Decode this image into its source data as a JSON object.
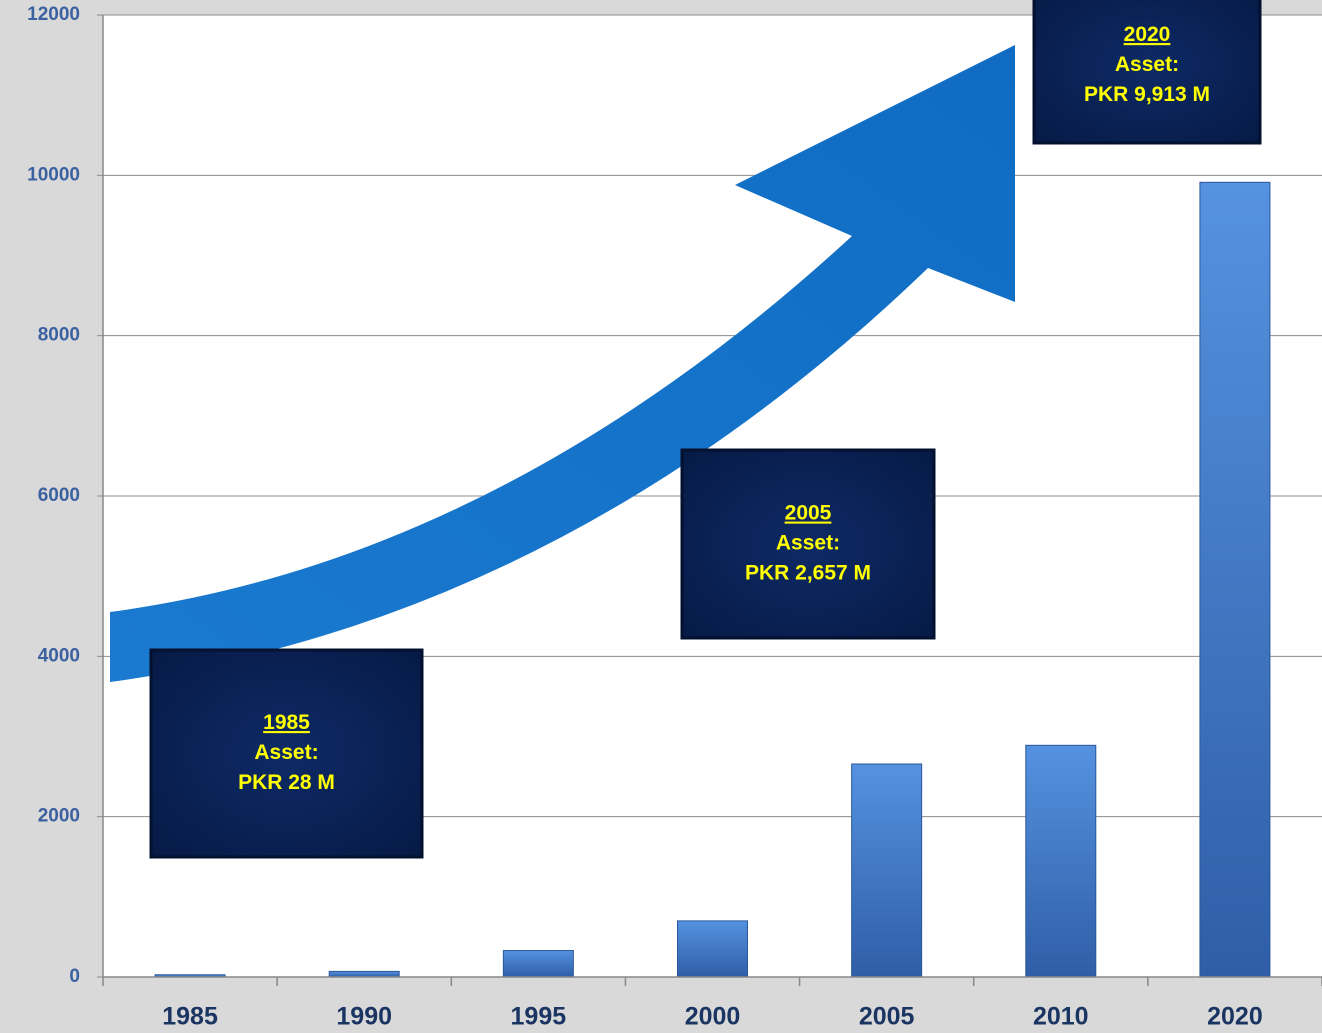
{
  "chart_data": {
    "type": "bar",
    "categories": [
      "1985",
      "1990",
      "1995",
      "2000",
      "2005",
      "2010",
      "2020"
    ],
    "values": [
      28,
      70,
      330,
      700,
      2657,
      2890,
      9913
    ],
    "color": "#4a86d8",
    "ylim": [
      0,
      12000
    ],
    "yticks": [
      0,
      2000,
      4000,
      6000,
      8000,
      10000,
      12000
    ],
    "grid": true,
    "annotations": [
      {
        "year": "1985",
        "label": "Asset:",
        "value": "PKR 28 M"
      },
      {
        "year": "2005",
        "label": "Asset:",
        "value": "PKR 2,657 M"
      },
      {
        "year": "2020",
        "label": "Asset:",
        "value": "PKR 9,913 M"
      }
    ]
  }
}
